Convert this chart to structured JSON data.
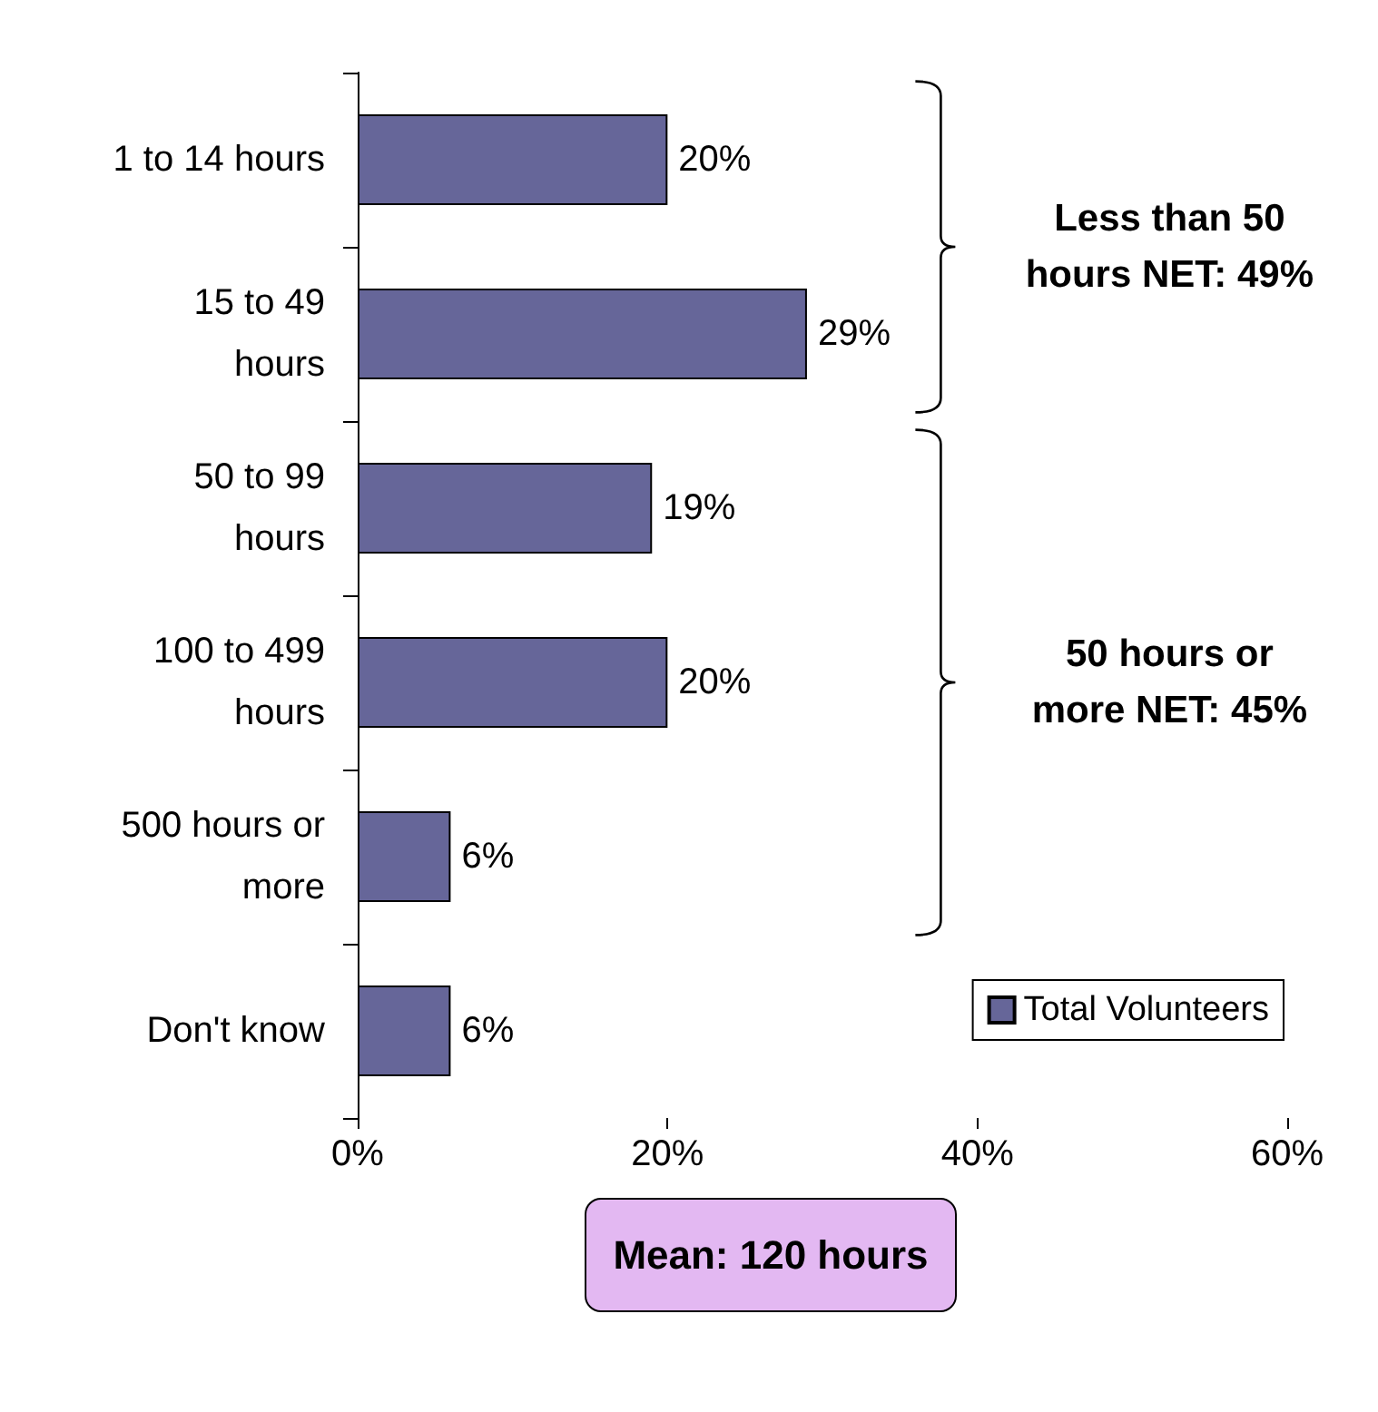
{
  "chart_data": {
    "type": "bar",
    "orientation": "horizontal",
    "categories": [
      "1 to 14 hours",
      "15 to 49\nhours",
      "50 to 99\nhours",
      "100 to 499\nhours",
      "500 hours or\nmore",
      "Don't know"
    ],
    "series": [
      {
        "name": "Total Volunteers",
        "color": "#666699",
        "values": [
          20,
          29,
          19,
          20,
          6,
          6
        ],
        "value_labels": [
          "20%",
          "29%",
          "19%",
          "20%",
          "6%",
          "6%"
        ]
      }
    ],
    "xlim": [
      0,
      60
    ],
    "xticks": [
      {
        "value": 0,
        "label": "0%"
      },
      {
        "value": 20,
        "label": "20%"
      },
      {
        "value": 40,
        "label": "40%"
      },
      {
        "value": 60,
        "label": "60%"
      }
    ],
    "grid": false,
    "legend": "bottom right",
    "annotations": [
      "Less than 50 hours NET: 49%",
      "50 hours or more NET: 45%",
      "Mean: 120 hours"
    ]
  }
}
